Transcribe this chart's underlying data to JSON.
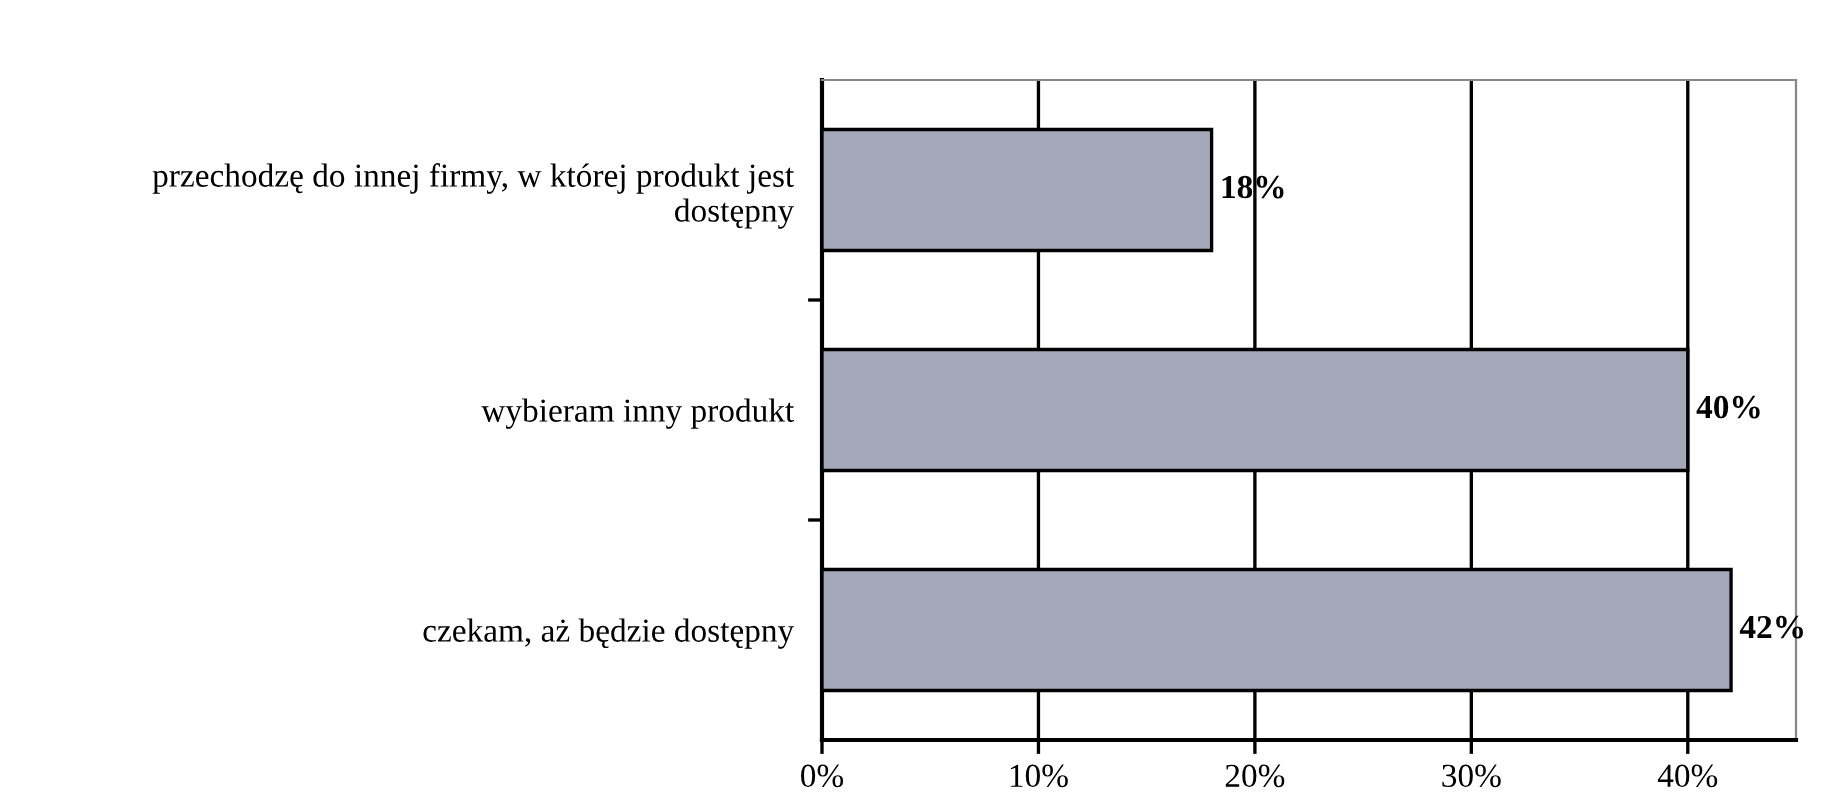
{
  "chart_data": {
    "type": "bar",
    "orientation": "horizontal",
    "categories": [
      "przechodzę do innej firmy, w której produkt jest\ndostępny",
      "wybieram inny produkt",
      "czekam, aż będzie dostępny"
    ],
    "values": [
      18,
      40,
      42
    ],
    "value_labels": [
      "18%",
      "40%",
      "42%"
    ],
    "color": "#a3a7b8",
    "xlim": [
      0,
      45
    ],
    "xticks": [
      {
        "value": 0,
        "label": "0%"
      },
      {
        "value": 10,
        "label": "10%"
      },
      {
        "value": 20,
        "label": "20%"
      },
      {
        "value": 30,
        "label": "30%"
      },
      {
        "value": 40,
        "label": "40%"
      }
    ],
    "grid": "x",
    "legend": false
  }
}
